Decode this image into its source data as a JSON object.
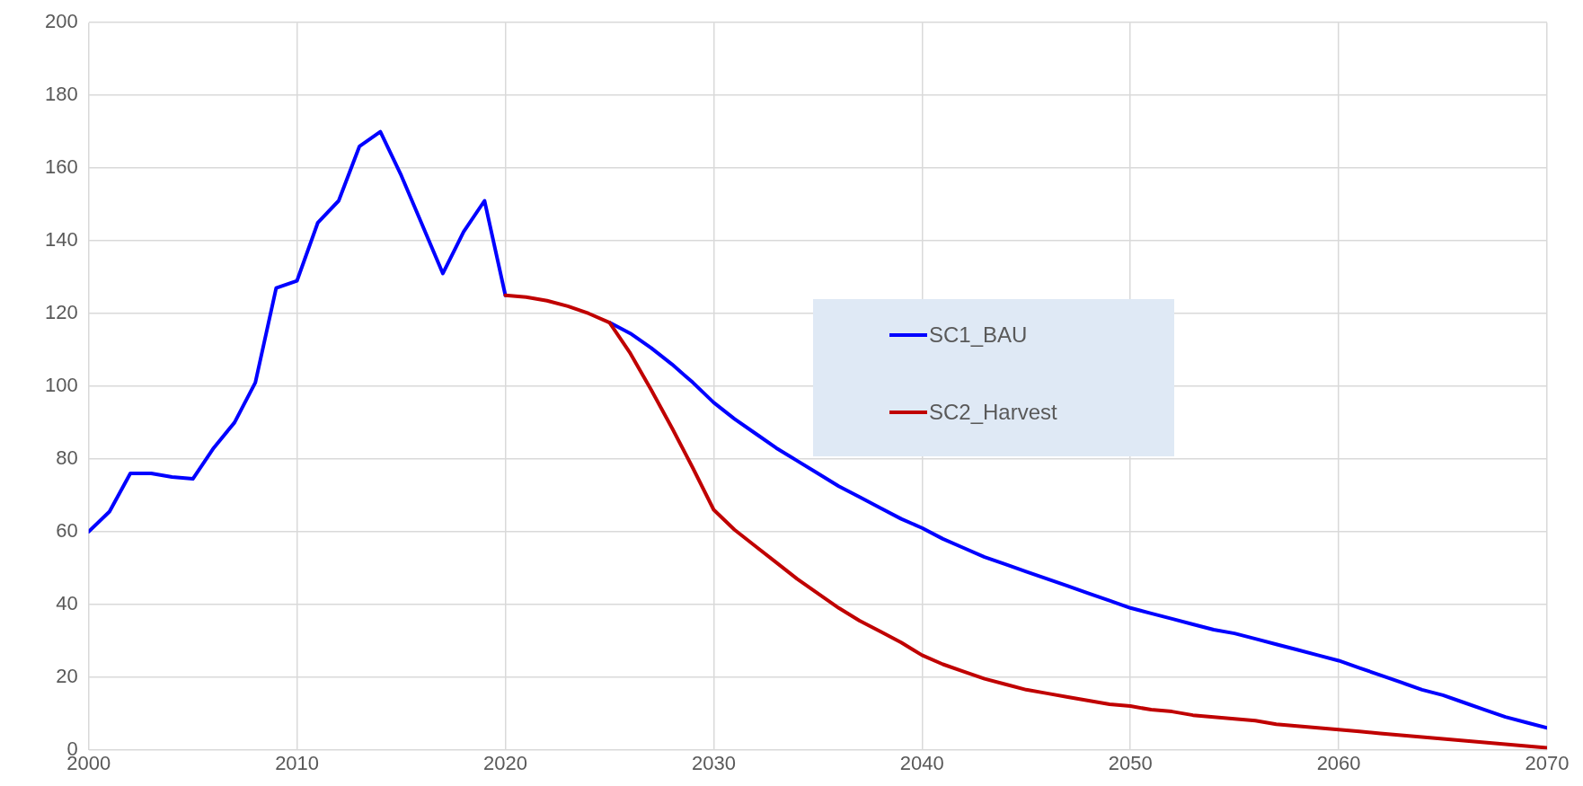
{
  "chart_data": {
    "type": "line",
    "legend": "center",
    "grid": true,
    "marker": "none",
    "line_style": "solid",
    "xlim": [
      2000,
      2070
    ],
    "xticks": [
      2000,
      2010,
      2020,
      2030,
      2040,
      2050,
      2060,
      2070
    ],
    "ylim": [
      0,
      200
    ],
    "yticks": [
      0,
      20,
      40,
      60,
      80,
      100,
      120,
      140,
      160,
      180,
      200
    ],
    "series": [
      {
        "name": "SC1_BAU",
        "color": "#0000ff",
        "x": [
          2000,
          2001,
          2002,
          2003,
          2004,
          2005,
          2006,
          2007,
          2008,
          2009,
          2010,
          2011,
          2012,
          2013,
          2014,
          2015,
          2016,
          2017,
          2018,
          2019,
          2020,
          2021,
          2022,
          2023,
          2024,
          2025,
          2026,
          2027,
          2028,
          2029,
          2030,
          2031,
          2032,
          2033,
          2034,
          2035,
          2036,
          2037,
          2038,
          2039,
          2040,
          2041,
          2042,
          2043,
          2044,
          2045,
          2046,
          2047,
          2048,
          2049,
          2050,
          2051,
          2052,
          2053,
          2054,
          2055,
          2056,
          2057,
          2058,
          2059,
          2060,
          2061,
          2062,
          2063,
          2064,
          2065,
          2066,
          2067,
          2068,
          2069,
          2070
        ],
        "values": [
          60,
          65.5,
          76,
          76,
          75,
          74.5,
          83,
          90,
          101,
          127,
          129,
          145,
          151,
          166,
          170,
          158,
          144.5,
          131,
          142.5,
          151,
          125,
          null,
          null,
          null,
          null,
          117.5,
          114.5,
          110.5,
          106,
          101,
          95.5,
          91,
          87,
          83,
          79.5,
          76,
          72.5,
          69.5,
          66.5,
          63.5,
          61,
          58,
          55.5,
          53,
          51,
          49,
          47,
          45,
          43,
          41,
          39,
          37.5,
          36,
          34.5,
          33,
          32,
          30.5,
          29,
          27.5,
          26,
          24.5,
          22.5,
          20.5,
          18.5,
          16.5,
          15,
          13,
          11,
          9,
          7.5,
          6
        ]
      },
      {
        "name": "SC2_Harvest",
        "color": "#c00000",
        "x": [
          2020,
          2021,
          2022,
          2023,
          2024,
          2025,
          2026,
          2027,
          2028,
          2029,
          2030,
          2031,
          2032,
          2033,
          2034,
          2035,
          2036,
          2037,
          2038,
          2039,
          2040,
          2041,
          2042,
          2043,
          2044,
          2045,
          2046,
          2047,
          2048,
          2049,
          2050,
          2051,
          2052,
          2053,
          2054,
          2055,
          2056,
          2057,
          2058,
          2059,
          2060,
          2061,
          2062,
          2063,
          2064,
          2065,
          2066,
          2067,
          2068,
          2069,
          2070
        ],
        "values": [
          125,
          124.5,
          123.5,
          122,
          120,
          117.5,
          109,
          99,
          88.5,
          77.5,
          66,
          60.5,
          56,
          51.5,
          47,
          43,
          39,
          35.5,
          32.5,
          29.5,
          26,
          23.5,
          21.5,
          19.5,
          18,
          16.5,
          15.5,
          14.5,
          13.5,
          12.5,
          12,
          11,
          10.5,
          9.5,
          9,
          8.5,
          8,
          7,
          6.5,
          6,
          5.5,
          5,
          4.5,
          4,
          3.5,
          3,
          2.5,
          2,
          1.5,
          1,
          0.5
        ]
      }
    ]
  }
}
